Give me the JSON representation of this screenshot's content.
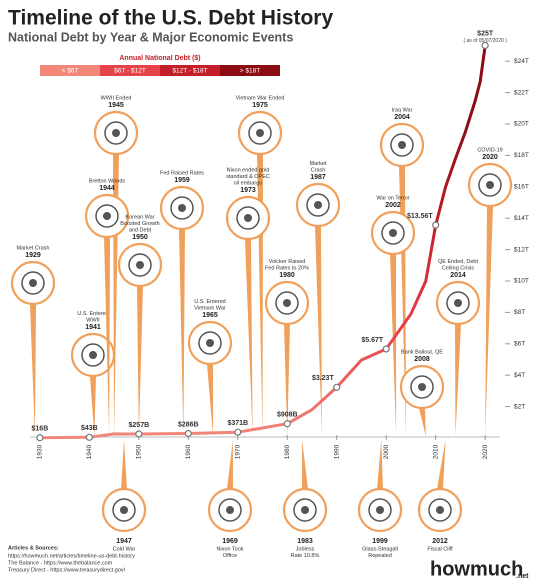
{
  "chart_data": {
    "type": "line",
    "title": "Timeline of the U.S. Debt History",
    "subtitle": "National Debt by Year & Major Economic Events",
    "legend_title": "Annual National Debt ($)",
    "legend": [
      {
        "label": "< $6T",
        "color": "#f2877a"
      },
      {
        "label": "$6T - $12T",
        "color": "#e5434a"
      },
      {
        "label": "$12T - $18T",
        "color": "#c41e2a"
      },
      {
        "label": "> $18T",
        "color": "#8c0c14"
      }
    ],
    "x": [
      1930,
      1940,
      1945,
      1950,
      1960,
      1970,
      1980,
      1985,
      1990,
      1995,
      2000,
      2005,
      2008,
      2010,
      2012,
      2014,
      2016,
      2018,
      2019,
      2020
    ],
    "values": [
      0.016,
      0.043,
      0.26,
      0.257,
      0.286,
      0.371,
      0.908,
      1.8,
      3.23,
      4.97,
      5.67,
      7.9,
      10.0,
      13.56,
      16.0,
      17.8,
      19.5,
      21.5,
      22.7,
      25
    ],
    "value_labels": [
      "$16B",
      "$43B",
      null,
      "$257B",
      "$286B",
      "$371B",
      "$908B",
      null,
      "$3.23T",
      null,
      "$5.67T",
      null,
      null,
      "$13.56T",
      null,
      null,
      null,
      null,
      null,
      "$25T"
    ],
    "annotation": "( as of 05/07/2020 )",
    "xlim": [
      1928,
      2023
    ],
    "xticks": [
      1930,
      1940,
      1950,
      1960,
      1970,
      1980,
      1990,
      2000,
      2010,
      2020
    ],
    "ylim": [
      0,
      25
    ],
    "yticks": [
      {
        "value": 2,
        "label": "$2T"
      },
      {
        "value": 4,
        "label": "$4T"
      },
      {
        "value": 6,
        "label": "$6T"
      },
      {
        "value": 8,
        "label": "$8T"
      },
      {
        "value": 10,
        "label": "$10T"
      },
      {
        "value": 12,
        "label": "$12T"
      },
      {
        "value": 14,
        "label": "$14T"
      },
      {
        "value": 16,
        "label": "$16T"
      },
      {
        "value": 18,
        "label": "$18T"
      },
      {
        "value": 20,
        "label": "$20T"
      },
      {
        "value": 22,
        "label": "$22T"
      },
      {
        "value": 24,
        "label": "$24T"
      }
    ],
    "events": [
      {
        "label": [
          "Market Crash"
        ],
        "year": 1929
      },
      {
        "label": [
          "U.S. Entered",
          "WWII"
        ],
        "year": 1941
      },
      {
        "label": [
          "WWII Ended"
        ],
        "year": 1945
      },
      {
        "label": [
          "Bretton Woods"
        ],
        "year": 1944
      },
      {
        "label": [
          "Korean War",
          "Boosted Growth",
          "and Debt"
        ],
        "year": 1950
      },
      {
        "label": [
          "Fed Raised Rates"
        ],
        "year": 1959
      },
      {
        "label": [
          "U.S. Entered",
          "Vietnam War"
        ],
        "year": 1965
      },
      {
        "label": [
          "Vietnam War Ended"
        ],
        "year": 1975
      },
      {
        "label": [
          "Nixon ended gold",
          "standard & OPEC",
          "oil embargo"
        ],
        "year": 1973
      },
      {
        "label": [
          "Volcker Raised",
          "Fed Rates to 20%"
        ],
        "year": 1980
      },
      {
        "label": [
          "Market",
          "Crash"
        ],
        "year": 1987
      },
      {
        "label": [
          "Iraq War"
        ],
        "year": 2004
      },
      {
        "label": [
          "War on Terror"
        ],
        "year": 2002
      },
      {
        "label": [
          "COVID-19"
        ],
        "year": 2020
      },
      {
        "label": [
          "QE Ended, Debt",
          "Ceiling Crisis"
        ],
        "year": 2014
      },
      {
        "label": [
          "Bank Bailout, QE"
        ],
        "year": 2008
      },
      {
        "label": [
          "Cold War"
        ],
        "year": 1947
      },
      {
        "label": [
          "Nixon Took",
          "Office"
        ],
        "year": 1969
      },
      {
        "label": [
          "Jobless",
          "Rate 10.8%"
        ],
        "year": 1983
      },
      {
        "label": [
          "Glass-Steagall",
          "Repealed"
        ],
        "year": 1999
      },
      {
        "label": [
          "Fiscal Cliff"
        ],
        "year": 2012
      }
    ],
    "sources_title": "Articles & Sources:",
    "sources": [
      "https://howmuch.net/articles/timeline-us-debt-history",
      "The Balance - https://www.thebalance.com",
      "Treasury Direct - https://www.treasurydirect.gov/"
    ],
    "logo": "howmuch",
    "logo_suffix": ".net"
  }
}
